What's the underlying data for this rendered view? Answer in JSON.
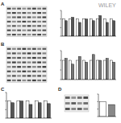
{
  "watermark": "WILEY",
  "panel_labels": [
    "A",
    "B",
    "C",
    "D"
  ],
  "chart_data": [
    {
      "type": "bar",
      "categories": [
        null,
        null,
        null,
        null,
        null,
        null,
        null,
        null
      ],
      "series": [
        {
          "color": "#ffffff",
          "values": [
            1,
            1,
            1,
            1,
            1,
            1,
            1,
            1
          ]
        },
        {
          "color": "#555555",
          "values": [
            0.9,
            1.1,
            0.8,
            1.0,
            0.9,
            1.2,
            0.8,
            0.9
          ]
        }
      ],
      "ylim": [
        0,
        1.5
      ],
      "yticks": [
        0,
        0.5,
        1,
        1.5
      ],
      "tick_labels": false
    },
    {
      "type": "bar",
      "categories": [
        null,
        null,
        null,
        null,
        null,
        null,
        null,
        null
      ],
      "series": [
        {
          "color": "#ffffff",
          "values": [
            1,
            1,
            1,
            1,
            1,
            1,
            1,
            1
          ]
        },
        {
          "color": "#777777",
          "values": [
            1.1,
            0.8,
            1.2,
            0.9,
            1.3,
            1.0,
            1.1,
            0.9
          ]
        }
      ],
      "ylim": [
        0,
        1.5
      ],
      "yticks": [
        0,
        0.5,
        1,
        1.5
      ],
      "tick_labels": false
    },
    {
      "type": "bar",
      "categories": [
        null,
        null,
        null,
        null,
        null
      ],
      "series": [
        {
          "color": "#ffffff",
          "values": [
            1,
            1,
            1,
            1,
            1
          ]
        },
        {
          "color": "#555555",
          "values": [
            0.9,
            1.0,
            0.8,
            0.9,
            0.85
          ]
        }
      ],
      "ylim": [
        0,
        1.5
      ],
      "yticks": [
        0,
        0.5,
        1,
        1.5
      ],
      "tick_labels": false
    },
    {
      "type": "bar",
      "categories": [
        null,
        null
      ],
      "values": [
        1,
        0.8
      ],
      "colors": [
        "#ffffff",
        "#888888"
      ],
      "ylim": [
        0,
        1.5
      ],
      "yticks": [
        0,
        0.5,
        1,
        1.5
      ],
      "tick_labels": false
    }
  ]
}
